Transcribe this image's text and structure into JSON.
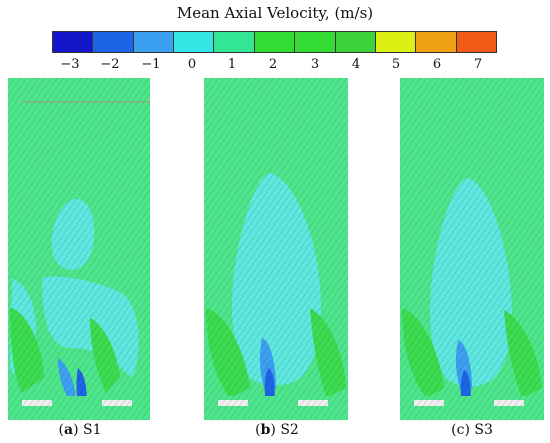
{
  "title": "Mean Axial Velocity, (m/s)",
  "colorbar": {
    "ticks": [
      "−3",
      "−2",
      "−1",
      "0",
      "1",
      "2",
      "3",
      "4",
      "5",
      "6",
      "7"
    ],
    "colors": [
      "#1414c8",
      "#1e64e6",
      "#3ca0f0",
      "#32e6e6",
      "#32e696",
      "#32dc32",
      "#32dc32",
      "#3cd23c",
      "#dcf014",
      "#f0a014",
      "#f05a14",
      "#e61414"
    ]
  },
  "panels": [
    {
      "letter": "a",
      "label": "S1"
    },
    {
      "letter": "b",
      "label": "S2"
    },
    {
      "letter": "c",
      "label": "S3"
    }
  ]
}
